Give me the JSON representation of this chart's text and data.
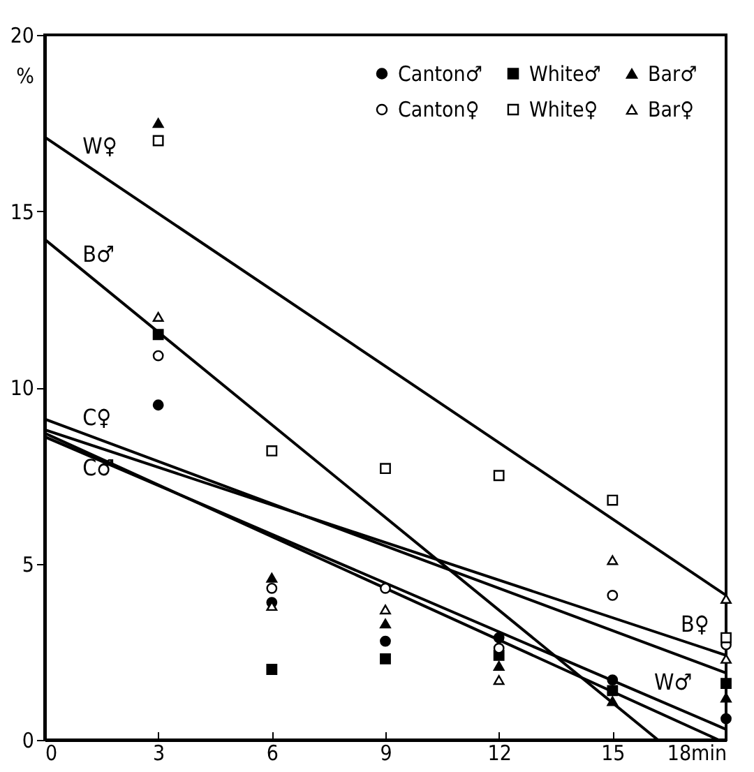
{
  "chart_data": {
    "type": "scatter",
    "ylabel": "%",
    "xlim": [
      0,
      18
    ],
    "ylim": [
      0,
      20
    ],
    "xticks": [
      0,
      3,
      6,
      9,
      12,
      15,
      {
        "value": 18,
        "label": "18min"
      }
    ],
    "yticks": [
      0,
      5,
      10,
      15,
      20
    ],
    "grid": false,
    "legend": "top right",
    "x": [
      3,
      6,
      9,
      12,
      15,
      18
    ],
    "series": [
      {
        "name": "Canton♂",
        "color": "#000000",
        "marker": "circle",
        "values": [
          9.5,
          3.9,
          2.8,
          2.9,
          1.7,
          0.6
        ]
      },
      {
        "name": "White♂",
        "color": "#000000",
        "marker": "square",
        "values": [
          11.5,
          2.0,
          2.3,
          2.4,
          1.4,
          1.6
        ]
      },
      {
        "name": "Bar♂",
        "color": "#000000",
        "marker": "triangle",
        "values": [
          17.5,
          4.6,
          3.3,
          2.1,
          1.1,
          1.2
        ]
      },
      {
        "name": "Canton♀",
        "color": "#ffffff",
        "marker": "circle",
        "values": [
          10.9,
          4.3,
          4.3,
          2.6,
          4.1,
          2.7
        ]
      },
      {
        "name": "White♀",
        "color": "#ffffff",
        "marker": "square",
        "values": [
          17.0,
          8.2,
          7.7,
          7.5,
          6.8,
          2.9
        ]
      },
      {
        "name": "Bar♀",
        "color": "#ffffff",
        "marker": "triangle",
        "x": [
          3,
          6,
          9,
          12,
          15,
          18,
          18
        ],
        "values": [
          12.0,
          3.8,
          3.7,
          1.7,
          5.1,
          4.0,
          2.3
        ]
      },
      {
        "type": "line",
        "color": "#000000",
        "x": [
          0,
          18
        ],
        "values": [
          17.1,
          4.1
        ]
      },
      {
        "type": "line",
        "color": "#000000",
        "x": [
          0,
          16.2
        ],
        "values": [
          14.2,
          0
        ]
      },
      {
        "type": "line",
        "color": "#000000",
        "x": [
          0,
          18
        ],
        "values": [
          9.1,
          1.9
        ]
      },
      {
        "type": "line",
        "color": "#000000",
        "x": [
          0,
          17.8
        ],
        "values": [
          8.7,
          0
        ]
      },
      {
        "type": "line",
        "color": "#000000",
        "x": [
          0,
          18
        ],
        "values": [
          8.8,
          2.4
        ]
      },
      {
        "type": "line",
        "color": "#000000",
        "x": [
          0,
          18
        ],
        "values": [
          8.6,
          0.3
        ]
      }
    ],
    "annotations": [
      {
        "text": "W♀",
        "x": 1,
        "y": 16.4
      },
      {
        "text": "B♂",
        "x": 1,
        "y": 13.32
      },
      {
        "text": "C♀",
        "x": 1,
        "y": 8.7
      },
      {
        "text": "C♂",
        "x": 1,
        "y": 8.21
      },
      {
        "text": "B♀",
        "x": 16.8,
        "y": 2.83
      },
      {
        "text": "W♂",
        "x": 16.1,
        "y": 1.18
      }
    ]
  }
}
